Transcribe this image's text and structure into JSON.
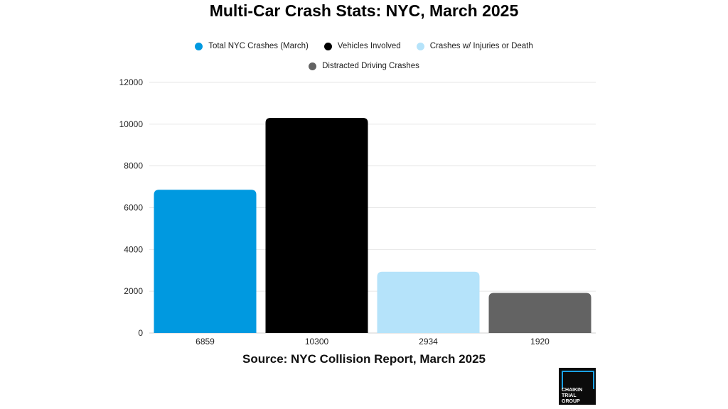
{
  "chart_data": {
    "type": "bar",
    "title": "Multi-Car Crash Stats: NYC, March 2025",
    "categories": [
      "6859",
      "10300",
      "2934",
      "1920"
    ],
    "series": [
      {
        "name": "Total NYC Crashes (March)",
        "value": 6859,
        "color": "#0099e0"
      },
      {
        "name": "Vehicles Involved",
        "value": 10300,
        "color": "#000000"
      },
      {
        "name": "Crashes w/ Injuries or Death",
        "value": 2934,
        "color": "#b5e3fa"
      },
      {
        "name": "Distracted Driving Crashes",
        "value": 1920,
        "color": "#636363"
      }
    ],
    "values": [
      6859,
      10300,
      2934,
      1920
    ],
    "ylim": [
      0,
      12000
    ],
    "yticks": [
      0,
      2000,
      4000,
      6000,
      8000,
      10000,
      12000
    ],
    "xlabel": "",
    "ylabel": "",
    "grid": true,
    "legend_position": "top"
  },
  "source": "Source: NYC Collision Report, March 2025",
  "logo_text": "CHAIKIN\nTRIAL\nGROUP"
}
